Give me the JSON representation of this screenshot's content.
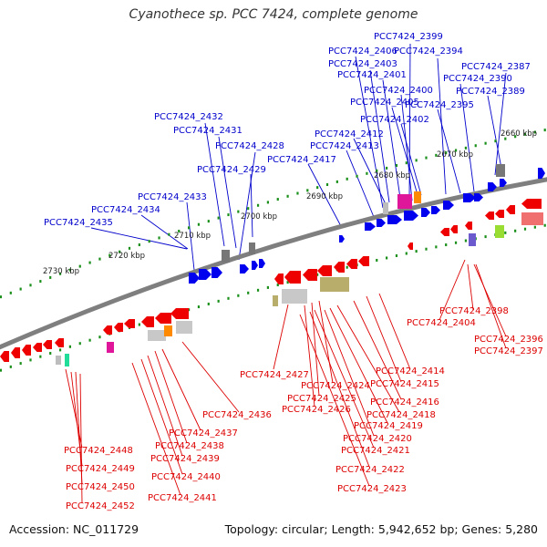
{
  "title": "Cyanothece sp. PCC 7424, complete genome",
  "accession_text": "Accession: NC_011729",
  "summary_text": "Topology: circular; Length: 5,942,652 bp; Genes: 5,280",
  "colors": {
    "forward_label": "#0000cc",
    "reverse_label": "#dd0000",
    "backbone": "#7f7f7f",
    "tick": "#1a8f1a"
  },
  "kbp_labels": [
    "2660 kbp",
    "2670 kbp",
    "2680 kbp",
    "2690 kbp",
    "2700 kbp",
    "2710 kbp",
    "2720 kbp",
    "2730 kbp"
  ],
  "forward_genes": [
    "PCC7424_2399",
    "PCC7424_2394",
    "PCC7424_2406",
    "PCC7424_2387",
    "PCC7424_2403",
    "PCC7424_2390",
    "PCC7424_2401",
    "PCC7424_2389",
    "PCC7424_2400",
    "PCC7424_2405",
    "PCC7424_2395",
    "PCC7424_2432",
    "PCC7424_2402",
    "PCC7424_2431",
    "PCC7424_2412",
    "PCC7424_2428",
    "PCC7424_2413",
    "PCC7424_2417",
    "PCC7424_2429",
    "PCC7424_2433",
    "PCC7424_2434",
    "PCC7424_2435"
  ],
  "reverse_genes": [
    "PCC7424_2398",
    "PCC7424_2404",
    "PCC7424_2396",
    "PCC7424_2397",
    "PCC7424_2414",
    "PCC7424_2427",
    "PCC7424_2415",
    "PCC7424_2424",
    "PCC7424_2416",
    "PCC7424_2425",
    "PCC7424_2418",
    "PCC7424_2426",
    "PCC7424_2436",
    "PCC7424_2419",
    "PCC7424_2437",
    "PCC7424_2420",
    "PCC7424_2438",
    "PCC7424_2421",
    "PCC7424_2448",
    "PCC7424_2439",
    "PCC7424_2449",
    "PCC7424_2422",
    "PCC7424_2440",
    "PCC7424_2450",
    "PCC7424_2423",
    "PCC7424_2441",
    "PCC7424_2452"
  ]
}
